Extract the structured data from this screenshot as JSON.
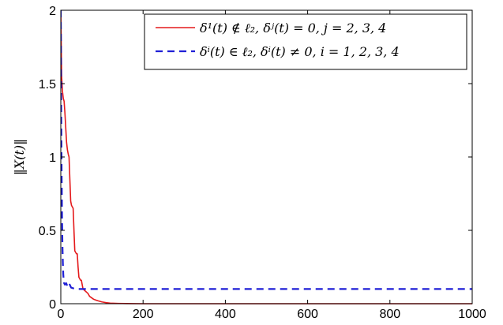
{
  "chart_data": {
    "type": "line",
    "xlim": [
      0,
      1000
    ],
    "ylim": [
      0,
      2
    ],
    "x_ticks": [
      {
        "value": 0,
        "label": "0"
      },
      {
        "value": 200,
        "label": "200"
      },
      {
        "value": 400,
        "label": "400"
      },
      {
        "value": 600,
        "label": "600"
      },
      {
        "value": 800,
        "label": "800"
      },
      {
        "value": 1000,
        "label": "1000"
      }
    ],
    "y_ticks": [
      {
        "value": 0,
        "label": "0"
      },
      {
        "value": 0.5,
        "label": "0.5"
      },
      {
        "value": 1,
        "label": "1"
      },
      {
        "value": 1.5,
        "label": "1.5"
      },
      {
        "value": 2,
        "label": "2"
      }
    ],
    "xlabel": "",
    "ylabel": "‖X(t)‖",
    "grid": false,
    "legend_position": "top-right",
    "series": [
      {
        "name": "δ¹(t) ∉ ℓ₂,   δʲ(t) = 0,  j = 2, 3, 4",
        "color": "#e41a1c",
        "dash": "solid",
        "points": [
          [
            0,
            2.0
          ],
          [
            2,
            1.55
          ],
          [
            4,
            1.45
          ],
          [
            6,
            1.4
          ],
          [
            8,
            1.38
          ],
          [
            10,
            1.3
          ],
          [
            12,
            1.2
          ],
          [
            14,
            1.1
          ],
          [
            16,
            1.05
          ],
          [
            18,
            1.02
          ],
          [
            20,
            1.0
          ],
          [
            22,
            0.85
          ],
          [
            24,
            0.7
          ],
          [
            26,
            0.67
          ],
          [
            28,
            0.66
          ],
          [
            30,
            0.65
          ],
          [
            32,
            0.5
          ],
          [
            34,
            0.36
          ],
          [
            36,
            0.35
          ],
          [
            38,
            0.34
          ],
          [
            40,
            0.34
          ],
          [
            42,
            0.25
          ],
          [
            44,
            0.18
          ],
          [
            46,
            0.17
          ],
          [
            48,
            0.16
          ],
          [
            50,
            0.16
          ],
          [
            52,
            0.13
          ],
          [
            54,
            0.1
          ],
          [
            56,
            0.095
          ],
          [
            58,
            0.09
          ],
          [
            60,
            0.085
          ],
          [
            62,
            0.08
          ],
          [
            64,
            0.075
          ],
          [
            66,
            0.07
          ],
          [
            68,
            0.06
          ],
          [
            70,
            0.05
          ],
          [
            75,
            0.04
          ],
          [
            80,
            0.03
          ],
          [
            85,
            0.025
          ],
          [
            90,
            0.02
          ],
          [
            100,
            0.012
          ],
          [
            110,
            0.007
          ],
          [
            120,
            0.004
          ],
          [
            140,
            0.002
          ],
          [
            160,
            0.001
          ],
          [
            200,
            0.0
          ],
          [
            1000,
            0.0
          ]
        ]
      },
      {
        "name": "δⁱ(t) ∈ ℓ₂,   δⁱ(t) ≠ 0,  i = 1, 2, 3, 4",
        "color": "#1f1fd6",
        "dash": "dashed",
        "points": [
          [
            0,
            2.0
          ],
          [
            1,
            1.3
          ],
          [
            2,
            0.9
          ],
          [
            3,
            0.6
          ],
          [
            4,
            0.4
          ],
          [
            5,
            0.28
          ],
          [
            6,
            0.2
          ],
          [
            7,
            0.16
          ],
          [
            8,
            0.14
          ],
          [
            10,
            0.13
          ],
          [
            13,
            0.14
          ],
          [
            16,
            0.12
          ],
          [
            20,
            0.14
          ],
          [
            25,
            0.11
          ],
          [
            30,
            0.105
          ],
          [
            40,
            0.1
          ],
          [
            60,
            0.1
          ],
          [
            100,
            0.1
          ],
          [
            1000,
            0.1
          ]
        ]
      }
    ]
  }
}
